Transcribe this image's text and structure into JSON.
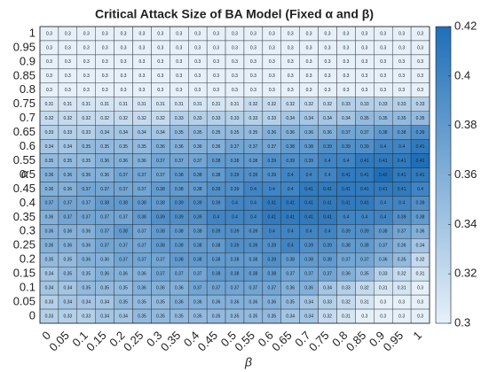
{
  "chart_data": {
    "type": "heatmap",
    "title": "Critical Attack Size of BA Model (Fixed α and β)",
    "x_label": "β",
    "y_label": "α",
    "x": [
      0,
      0.05,
      0.1,
      0.15,
      0.2,
      0.25,
      0.3,
      0.35,
      0.4,
      0.45,
      0.5,
      0.55,
      0.6,
      0.65,
      0.7,
      0.75,
      0.8,
      0.85,
      0.9,
      0.95,
      1
    ],
    "y": [
      1,
      0.95,
      0.9,
      0.85,
      0.8,
      0.75,
      0.7,
      0.65,
      0.6,
      0.55,
      0.5,
      0.45,
      0.4,
      0.35,
      0.3,
      0.25,
      0.2,
      0.15,
      0.1,
      0.05,
      0
    ],
    "z": [
      [
        0.3,
        0.3,
        0.3,
        0.3,
        0.3,
        0.3,
        0.3,
        0.3,
        0.3,
        0.3,
        0.3,
        0.3,
        0.3,
        0.3,
        0.3,
        0.3,
        0.3,
        0.3,
        0.3,
        0.3,
        0.3
      ],
      [
        0.3,
        0.3,
        0.3,
        0.3,
        0.3,
        0.3,
        0.3,
        0.3,
        0.3,
        0.3,
        0.3,
        0.3,
        0.3,
        0.3,
        0.3,
        0.3,
        0.3,
        0.3,
        0.3,
        0.3,
        0.3
      ],
      [
        0.3,
        0.3,
        0.3,
        0.3,
        0.3,
        0.3,
        0.3,
        0.3,
        0.3,
        0.3,
        0.3,
        0.3,
        0.3,
        0.3,
        0.3,
        0.3,
        0.3,
        0.3,
        0.3,
        0.3,
        0.3
      ],
      [
        0.3,
        0.3,
        0.3,
        0.3,
        0.3,
        0.3,
        0.3,
        0.3,
        0.3,
        0.3,
        0.3,
        0.3,
        0.3,
        0.3,
        0.3,
        0.3,
        0.3,
        0.3,
        0.3,
        0.3,
        0.3
      ],
      [
        0.3,
        0.3,
        0.3,
        0.3,
        0.3,
        0.3,
        0.3,
        0.3,
        0.3,
        0.3,
        0.3,
        0.3,
        0.3,
        0.3,
        0.3,
        0.3,
        0.3,
        0.3,
        0.3,
        0.3,
        0.3
      ],
      [
        0.31,
        0.31,
        0.31,
        0.31,
        0.31,
        0.31,
        0.31,
        0.31,
        0.31,
        0.31,
        0.31,
        0.32,
        0.32,
        0.32,
        0.32,
        0.32,
        0.33,
        0.33,
        0.33,
        0.33,
        0.33
      ],
      [
        0.32,
        0.32,
        0.32,
        0.32,
        0.32,
        0.32,
        0.32,
        0.33,
        0.33,
        0.33,
        0.33,
        0.33,
        0.33,
        0.34,
        0.34,
        0.34,
        0.34,
        0.35,
        0.35,
        0.35,
        0.35
      ],
      [
        0.33,
        0.33,
        0.33,
        0.34,
        0.34,
        0.34,
        0.34,
        0.35,
        0.35,
        0.35,
        0.35,
        0.35,
        0.36,
        0.36,
        0.36,
        0.36,
        0.37,
        0.37,
        0.38,
        0.38,
        0.39
      ],
      [
        0.34,
        0.34,
        0.35,
        0.35,
        0.35,
        0.35,
        0.36,
        0.36,
        0.36,
        0.36,
        0.37,
        0.37,
        0.37,
        0.38,
        0.38,
        0.39,
        0.39,
        0.39,
        0.4,
        0.4,
        0.41
      ],
      [
        0.35,
        0.35,
        0.35,
        0.36,
        0.36,
        0.36,
        0.37,
        0.37,
        0.37,
        0.38,
        0.38,
        0.38,
        0.39,
        0.39,
        0.39,
        0.4,
        0.4,
        0.41,
        0.41,
        0.41,
        0.42
      ],
      [
        0.36,
        0.36,
        0.36,
        0.36,
        0.37,
        0.37,
        0.37,
        0.38,
        0.38,
        0.38,
        0.39,
        0.39,
        0.39,
        0.4,
        0.4,
        0.4,
        0.41,
        0.41,
        0.42,
        0.41,
        0.41
      ],
      [
        0.36,
        0.36,
        0.37,
        0.37,
        0.37,
        0.37,
        0.38,
        0.38,
        0.38,
        0.39,
        0.39,
        0.4,
        0.4,
        0.4,
        0.41,
        0.41,
        0.41,
        0.41,
        0.41,
        0.41,
        0.4
      ],
      [
        0.37,
        0.37,
        0.37,
        0.38,
        0.38,
        0.38,
        0.38,
        0.39,
        0.39,
        0.39,
        0.4,
        0.4,
        0.41,
        0.41,
        0.41,
        0.41,
        0.41,
        0.41,
        0.4,
        0.4,
        0.39
      ],
      [
        0.36,
        0.37,
        0.37,
        0.37,
        0.37,
        0.38,
        0.39,
        0.39,
        0.39,
        0.4,
        0.4,
        0.4,
        0.41,
        0.41,
        0.41,
        0.41,
        0.4,
        0.4,
        0.4,
        0.39,
        0.38
      ],
      [
        0.36,
        0.36,
        0.36,
        0.37,
        0.38,
        0.37,
        0.38,
        0.38,
        0.38,
        0.39,
        0.39,
        0.39,
        0.4,
        0.4,
        0.4,
        0.4,
        0.39,
        0.39,
        0.38,
        0.37,
        0.36
      ],
      [
        0.36,
        0.36,
        0.36,
        0.37,
        0.37,
        0.37,
        0.38,
        0.38,
        0.38,
        0.38,
        0.39,
        0.39,
        0.39,
        0.4,
        0.39,
        0.39,
        0.38,
        0.38,
        0.37,
        0.36,
        0.34
      ],
      [
        0.35,
        0.35,
        0.36,
        0.36,
        0.37,
        0.37,
        0.37,
        0.38,
        0.38,
        0.38,
        0.38,
        0.38,
        0.39,
        0.38,
        0.38,
        0.38,
        0.37,
        0.37,
        0.36,
        0.35,
        0.32
      ],
      [
        0.34,
        0.35,
        0.35,
        0.36,
        0.36,
        0.36,
        0.37,
        0.37,
        0.37,
        0.38,
        0.38,
        0.38,
        0.38,
        0.37,
        0.37,
        0.37,
        0.36,
        0.35,
        0.33,
        0.32,
        0.31
      ],
      [
        0.34,
        0.34,
        0.35,
        0.35,
        0.35,
        0.36,
        0.36,
        0.36,
        0.37,
        0.37,
        0.37,
        0.37,
        0.37,
        0.36,
        0.36,
        0.34,
        0.33,
        0.32,
        0.31,
        0.31,
        0.3
      ],
      [
        0.33,
        0.34,
        0.34,
        0.34,
        0.35,
        0.35,
        0.35,
        0.36,
        0.36,
        0.36,
        0.36,
        0.36,
        0.36,
        0.35,
        0.34,
        0.33,
        0.32,
        0.31,
        0.3,
        0.3,
        0.3
      ],
      [
        0.33,
        0.33,
        0.33,
        0.34,
        0.34,
        0.35,
        0.35,
        0.35,
        0.35,
        0.35,
        0.35,
        0.35,
        0.35,
        0.34,
        0.34,
        0.32,
        0.31,
        0.3,
        0.3,
        0.3,
        0.3
      ]
    ],
    "colormap": [
      "#e6f0f9",
      "#1f6fb8"
    ],
    "clim": [
      0.3,
      0.42
    ],
    "cticks": [
      0.3,
      0.32,
      0.34,
      0.36,
      0.38,
      0.4,
      0.42
    ]
  }
}
